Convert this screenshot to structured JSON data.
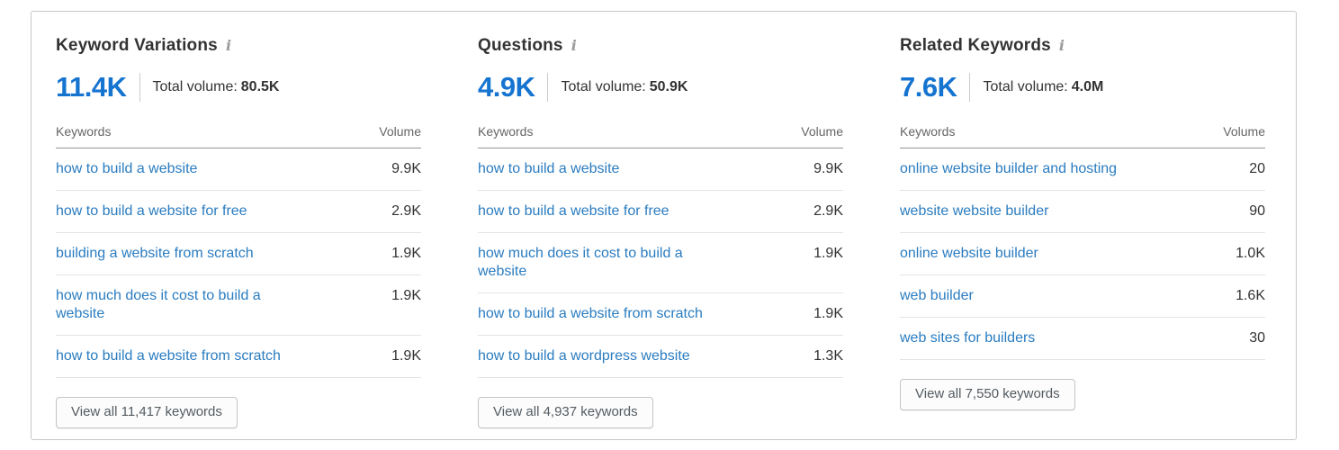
{
  "colors": {
    "accent_blue": "#1674d1",
    "link_blue": "#2a7cc0",
    "card_border": "#c8c8c8"
  },
  "icons": {
    "info": "i"
  },
  "columns": [
    {
      "title": "Keyword Variations",
      "count": "11.4K",
      "total_label": "Total volume:",
      "total_value": "80.5K",
      "table": {
        "headers": [
          "Keywords",
          "Volume"
        ],
        "rows": [
          {
            "keyword": "how to build a website",
            "volume": "9.9K"
          },
          {
            "keyword": "how to build a website for free",
            "volume": "2.9K"
          },
          {
            "keyword": "building a website from scratch",
            "volume": "1.9K"
          },
          {
            "keyword": "how much does it cost to build a website",
            "volume": "1.9K"
          },
          {
            "keyword": "how to build a website from scratch",
            "volume": "1.9K"
          }
        ]
      },
      "view_all_label": "View all 11,417 keywords"
    },
    {
      "title": "Questions",
      "count": "4.9K",
      "total_label": "Total volume:",
      "total_value": "50.9K",
      "table": {
        "headers": [
          "Keywords",
          "Volume"
        ],
        "rows": [
          {
            "keyword": "how to build a website",
            "volume": "9.9K"
          },
          {
            "keyword": "how to build a website for free",
            "volume": "2.9K"
          },
          {
            "keyword": "how much does it cost to build a website",
            "volume": "1.9K"
          },
          {
            "keyword": "how to build a website from scratch",
            "volume": "1.9K"
          },
          {
            "keyword": "how to build a wordpress website",
            "volume": "1.3K"
          }
        ]
      },
      "view_all_label": "View all 4,937 keywords"
    },
    {
      "title": "Related Keywords",
      "count": "7.6K",
      "total_label": "Total volume:",
      "total_value": "4.0M",
      "table": {
        "headers": [
          "Keywords",
          "Volume"
        ],
        "rows": [
          {
            "keyword": "online website builder and hosting",
            "volume": "20"
          },
          {
            "keyword": "website website builder",
            "volume": "90"
          },
          {
            "keyword": "online website builder",
            "volume": "1.0K"
          },
          {
            "keyword": "web builder",
            "volume": "1.6K"
          },
          {
            "keyword": "web sites for builders",
            "volume": "30"
          }
        ]
      },
      "view_all_label": "View all 7,550 keywords"
    }
  ]
}
